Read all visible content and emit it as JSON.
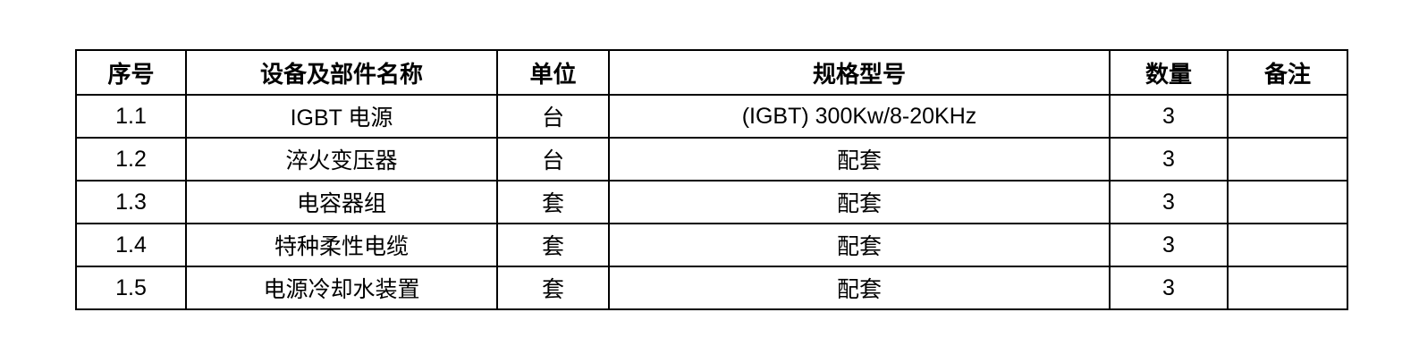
{
  "colors": {
    "background": "#ffffff",
    "border": "#000000",
    "text": "#000000"
  },
  "table": {
    "columns": [
      {
        "key": "index",
        "label": "序号"
      },
      {
        "key": "name",
        "label": "设备及部件名称"
      },
      {
        "key": "unit",
        "label": "单位"
      },
      {
        "key": "spec",
        "label": "规格型号"
      },
      {
        "key": "qty",
        "label": "数量"
      },
      {
        "key": "remark",
        "label": "备注"
      }
    ],
    "rows": [
      {
        "index": "1.1",
        "name": "IGBT 电源",
        "unit": "台",
        "spec": "(IGBT) 300Kw/8-20KHz",
        "qty": "3",
        "remark": ""
      },
      {
        "index": "1.2",
        "name": "淬火变压器",
        "unit": "台",
        "spec": "配套",
        "qty": "3",
        "remark": ""
      },
      {
        "index": "1.3",
        "name": "电容器组",
        "unit": "套",
        "spec": "配套",
        "qty": "3",
        "remark": ""
      },
      {
        "index": "1.4",
        "name": "特种柔性电缆",
        "unit": "套",
        "spec": "配套",
        "qty": "3",
        "remark": ""
      },
      {
        "index": "1.5",
        "name": "电源冷却水装置",
        "unit": "套",
        "spec": "配套",
        "qty": "3",
        "remark": ""
      }
    ]
  }
}
